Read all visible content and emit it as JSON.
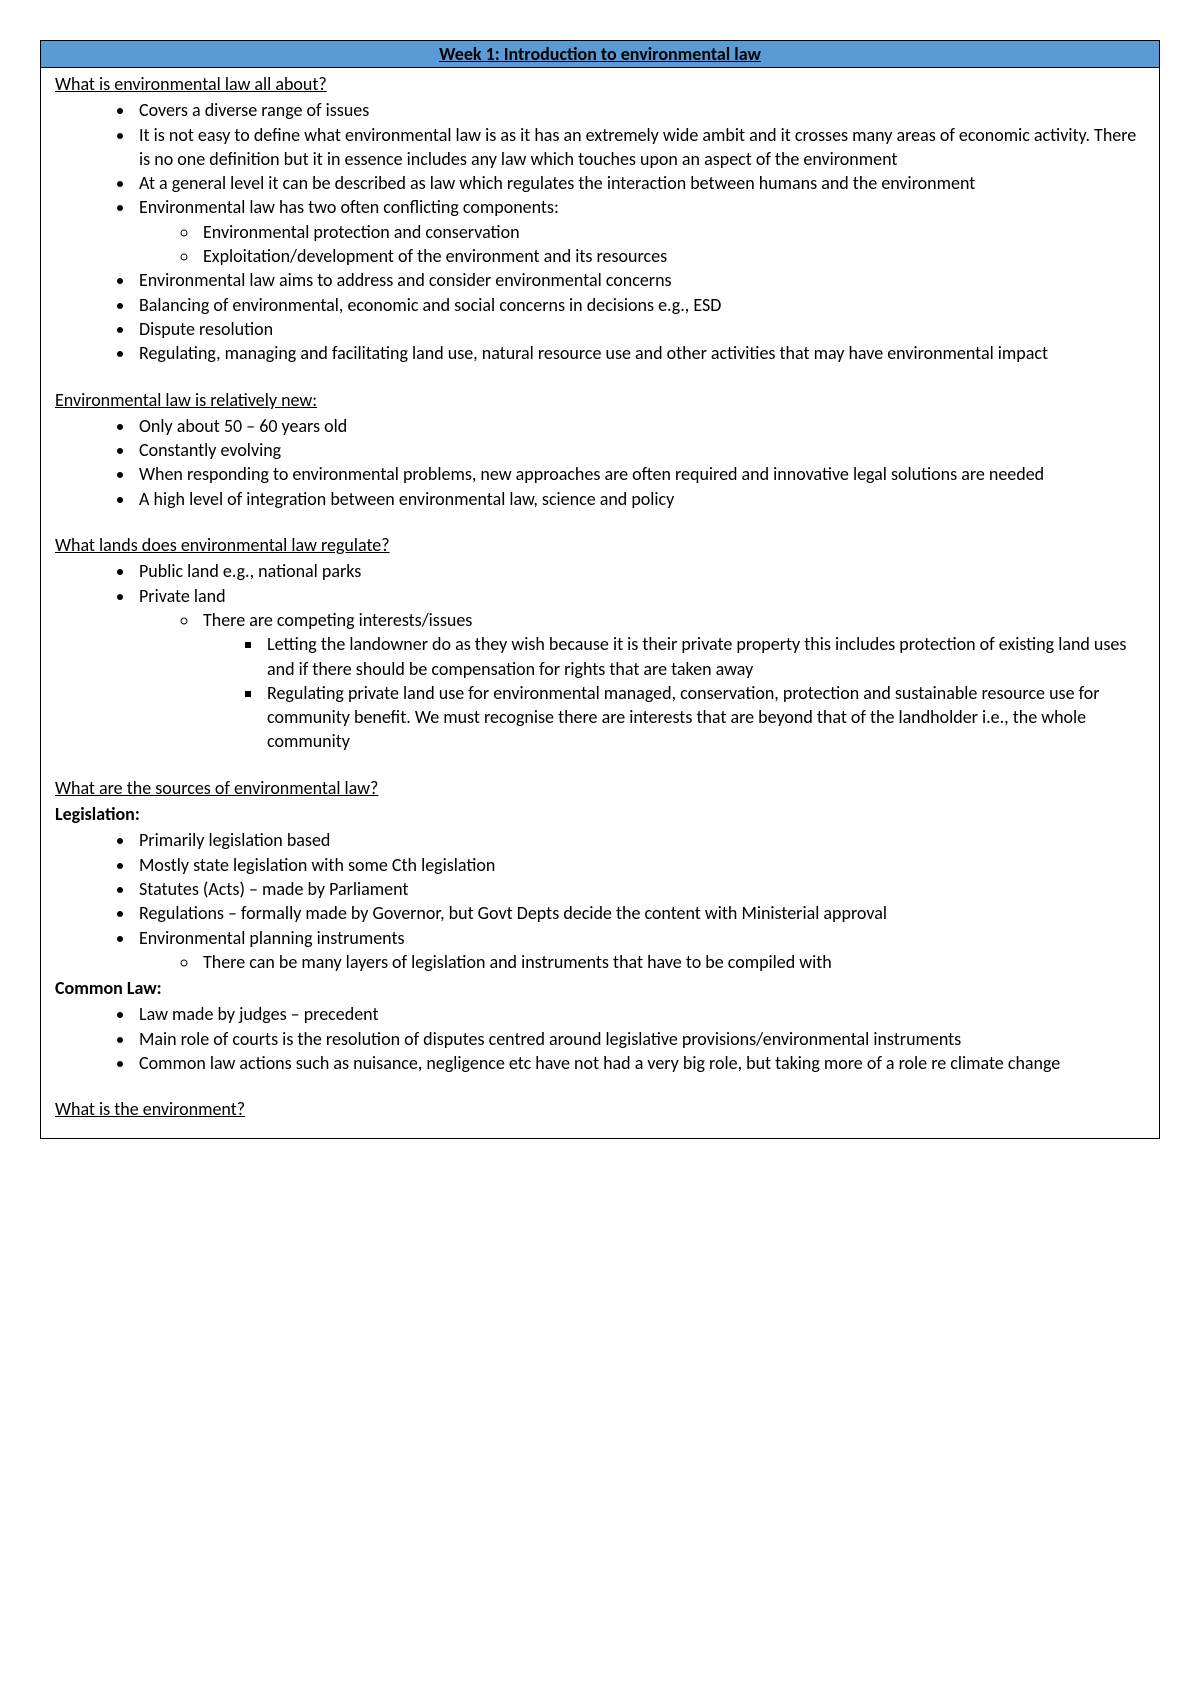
{
  "title": "Week 1: Introduction to environmental law",
  "sections": {
    "s1": {
      "heading": "What is environmental law all about?",
      "items": {
        "i0": "Covers a diverse range of issues",
        "i1": "It is not easy to define what environmental law is as it has an extremely wide ambit and it crosses many areas of economic activity. There is no one definition but it in essence includes any law which touches upon an aspect of the environment",
        "i2": "At a general level it can be described as law which regulates the interaction between humans and the environment",
        "i3": "Environmental law has two often conflicting components:",
        "i3a": "Environmental protection and conservation",
        "i3b": "Exploitation/development of the environment and its resources",
        "i4": "Environmental law aims to address and consider environmental concerns",
        "i5": "Balancing of environmental, economic and social concerns in decisions e.g., ESD",
        "i6": "Dispute resolution",
        "i7": "Regulating, managing and facilitating land use, natural resource use and other activities that may have environmental impact"
      }
    },
    "s2": {
      "heading": "Environmental law is relatively new:",
      "items": {
        "i0": "Only about 50 – 60 years old",
        "i1": "Constantly evolving",
        "i2": "When responding to environmental problems, new approaches are often required and innovative legal solutions are needed",
        "i3": "A high level of integration between environmental law, science and policy"
      }
    },
    "s3": {
      "heading": "What lands does environmental law regulate?",
      "items": {
        "i0": "Public land e.g., national parks",
        "i1": "Private land",
        "i1a": "There are competing interests/issues",
        "i1a1": "Letting the landowner do as they wish because it is their private property this includes protection of existing land uses and if there should be compensation for rights that are taken away",
        "i1a2": "Regulating private land use for environmental managed, conservation, protection and sustainable resource use for community benefit. We must recognise there are interests that are beyond that of the landholder i.e., the whole community"
      }
    },
    "s4": {
      "heading": "What are the sources of environmental law?",
      "sub1": "Legislation:",
      "items1": {
        "i0": "Primarily legislation based",
        "i1": "Mostly state legislation with some Cth legislation",
        "i2": "Statutes (Acts) – made by Parliament",
        "i3": "Regulations – formally made by Governor, but Govt Depts decide the content with Ministerial approval",
        "i4": "Environmental planning instruments",
        "i4a": "There can be many layers of legislation and instruments that have to be compiled with"
      },
      "sub2": "Common Law:",
      "items2": {
        "i0": "Law made by judges – precedent",
        "i1": "Main role of courts is the resolution of disputes centred around legislative provisions/environmental instruments",
        "i2": "Common law actions such as nuisance, negligence etc have not had a very big role, but taking more of a role re climate change"
      }
    },
    "s5": {
      "heading": "What is the environment?"
    }
  },
  "colors": {
    "title_bg": "#5b9bd5",
    "border": "#000000",
    "text": "#000000",
    "page_bg": "#ffffff"
  },
  "typography": {
    "font_family": "Calibri",
    "base_fontsize": 18,
    "line_height": 1.35
  }
}
